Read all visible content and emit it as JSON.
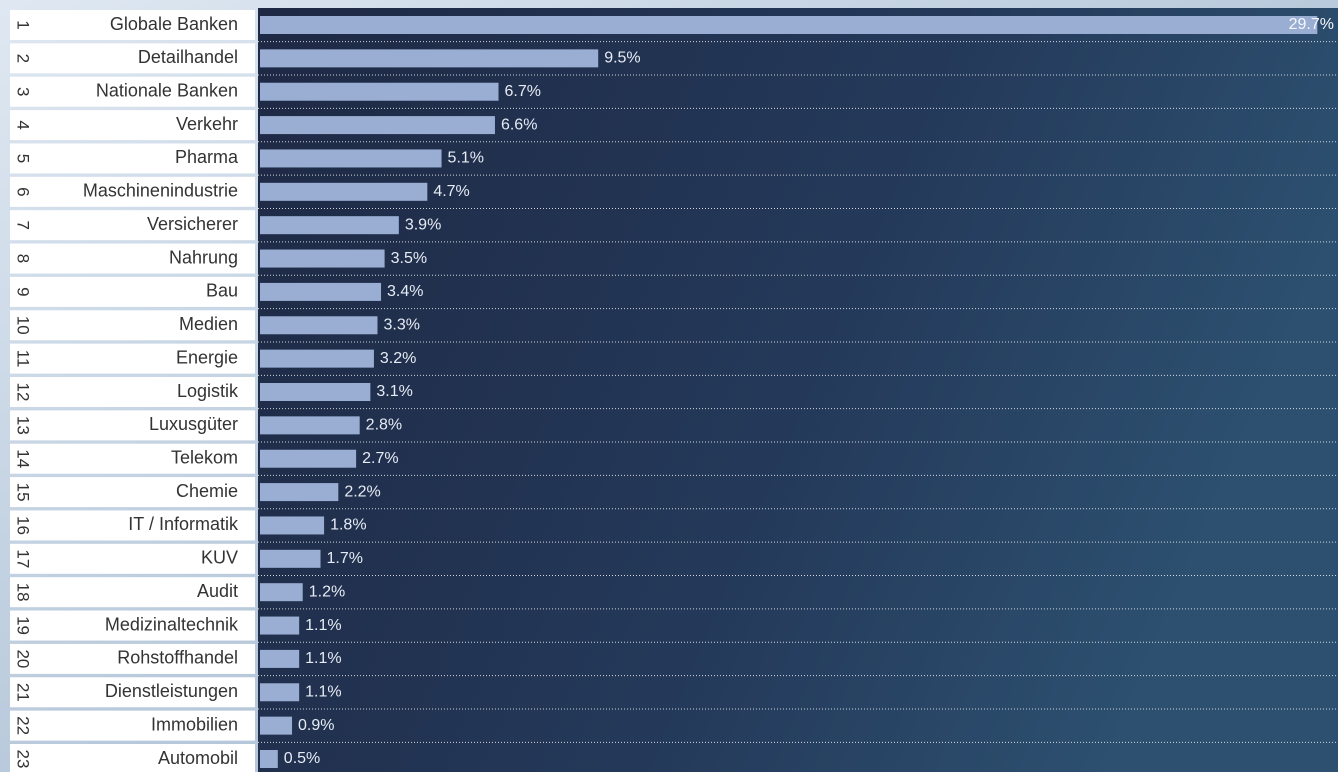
{
  "chart_data": {
    "type": "barh",
    "ranks": [
      1,
      2,
      3,
      4,
      5,
      6,
      7,
      8,
      9,
      10,
      11,
      12,
      13,
      14,
      15,
      16,
      17,
      18,
      19,
      20,
      21,
      22,
      23
    ],
    "categories": [
      "Globale Banken",
      "Detailhandel",
      "Nationale Banken",
      "Verkehr",
      "Pharma",
      "Maschinenindustrie",
      "Versicherer",
      "Nahrung",
      "Bau",
      "Medien",
      "Energie",
      "Logistik",
      "Luxusgüter",
      "Telekom",
      "Chemie",
      "IT / Informatik",
      "KUV",
      "Audit",
      "Medizinaltechnik",
      "Rohstoffhandel",
      "Dienstleistungen",
      "Immobilien",
      "Automobil"
    ],
    "values": [
      29.7,
      9.5,
      6.7,
      6.6,
      5.1,
      4.7,
      3.9,
      3.5,
      3.4,
      3.3,
      3.2,
      3.1,
      2.8,
      2.7,
      2.2,
      1.8,
      1.7,
      1.2,
      1.1,
      1.1,
      1.1,
      0.9,
      0.5
    ],
    "value_labels": [
      "29.7%",
      "9.5%",
      "6.7%",
      "6.6%",
      "5.1%",
      "4.7%",
      "3.9%",
      "3.5%",
      "3.4%",
      "3.3%",
      "3.2%",
      "3.1%",
      "2.8%",
      "2.7%",
      "2.2%",
      "1.8%",
      "1.7%",
      "1.2%",
      "1.1%",
      "1.1%",
      "1.1%",
      "0.9%",
      "0.5%"
    ],
    "color": "#9aaed3",
    "xlim": [
      0,
      30
    ]
  }
}
